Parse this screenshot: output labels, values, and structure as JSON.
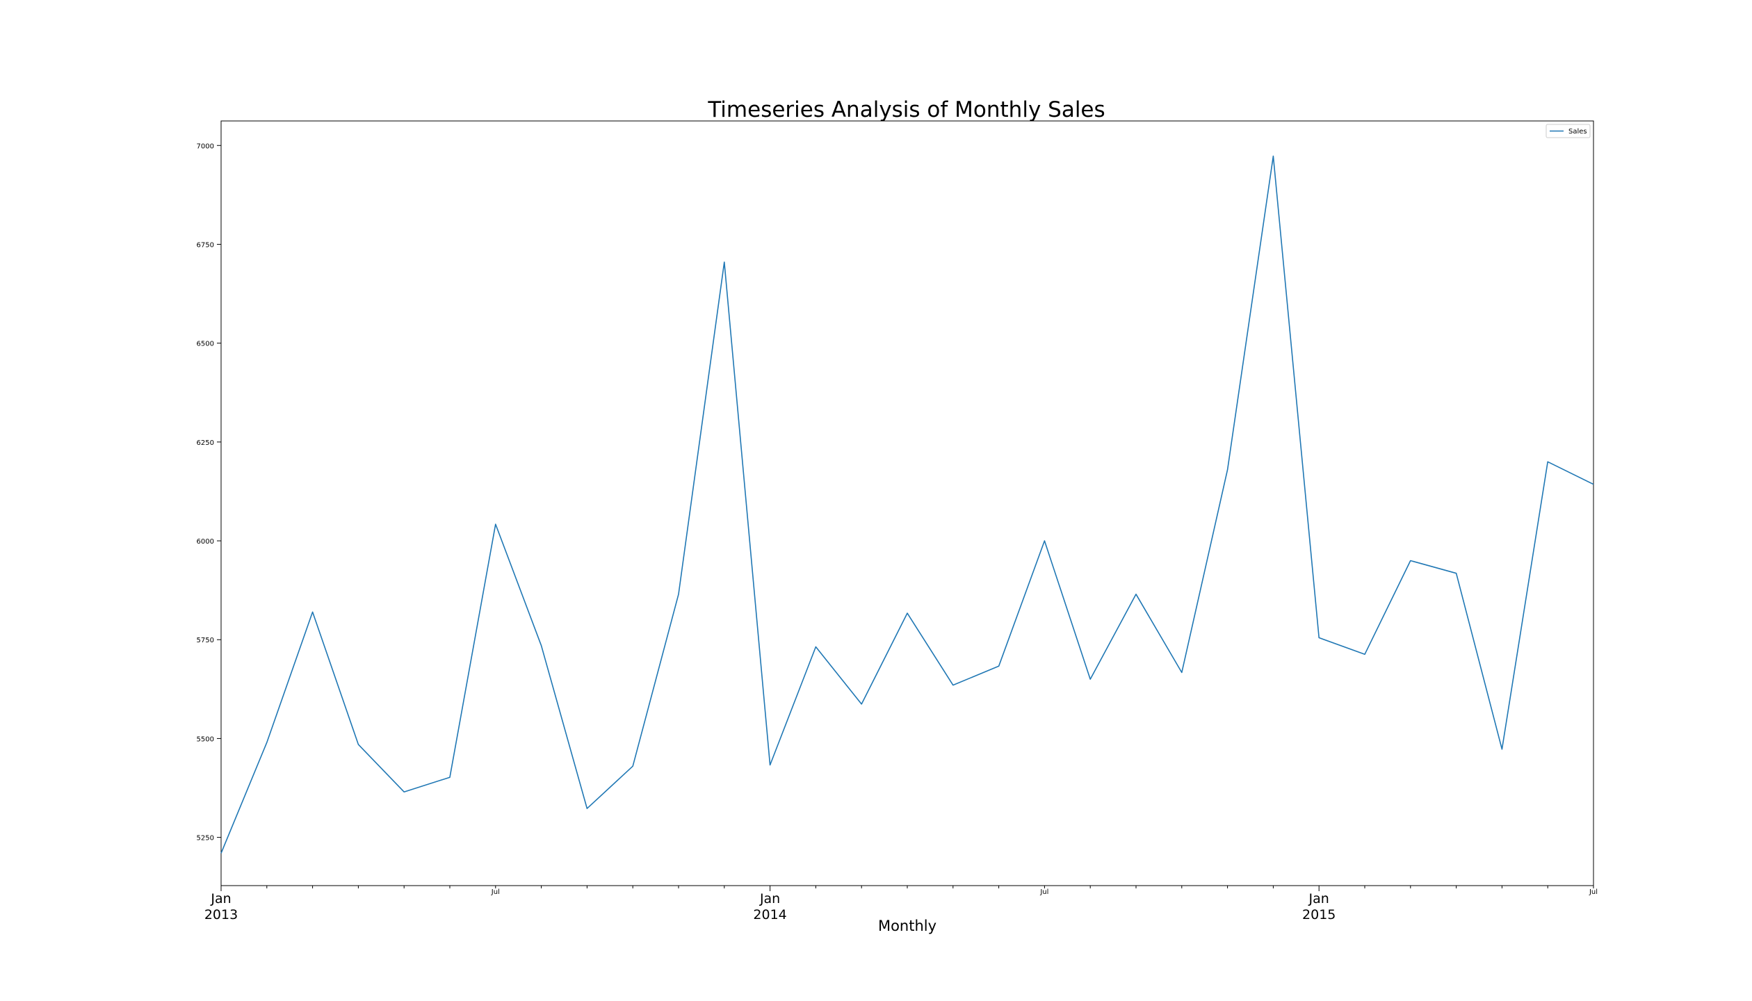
{
  "chart_data": {
    "type": "line",
    "title": "Timeseries Analysis of Monthly Sales",
    "xlabel": "Monthly",
    "ylabel": "",
    "ylim": [
      5128,
      7062
    ],
    "xlim": [
      "2013-01",
      "2015-07"
    ],
    "grid": false,
    "legend_position": "top-right",
    "line_color": "#1f77b4",
    "x": [
      "2013-01",
      "2013-02",
      "2013-03",
      "2013-04",
      "2013-05",
      "2013-06",
      "2013-07",
      "2013-08",
      "2013-09",
      "2013-10",
      "2013-11",
      "2013-12",
      "2014-01",
      "2014-02",
      "2014-03",
      "2014-04",
      "2014-05",
      "2014-06",
      "2014-07",
      "2014-08",
      "2014-09",
      "2014-10",
      "2014-11",
      "2014-12",
      "2015-01",
      "2015-02",
      "2015-03",
      "2015-04",
      "2015-05",
      "2015-06",
      "2015-07"
    ],
    "series": [
      {
        "name": "Sales",
        "values": [
          5210,
          5490,
          5820,
          5485,
          5365,
          5402,
          6042,
          5735,
          5323,
          5430,
          5865,
          6705,
          5433,
          5732,
          5587,
          5817,
          5635,
          5683,
          6000,
          5650,
          5865,
          5667,
          6180,
          6973,
          5755,
          5713,
          5950,
          5918,
          5473,
          6200,
          6143
        ]
      }
    ],
    "y_ticks": [
      "5250",
      "5500",
      "5750",
      "6000",
      "6250",
      "6500",
      "6750",
      "7000"
    ],
    "x_ticks": [
      {
        "date": "2013-01",
        "line1": "Jan",
        "line2": "2013",
        "major": true
      },
      {
        "date": "2013-07",
        "line1": "Jul",
        "line2": "",
        "major": false
      },
      {
        "date": "2014-01",
        "line1": "Jan",
        "line2": "2014",
        "major": true
      },
      {
        "date": "2014-07",
        "line1": "Jul",
        "line2": "",
        "major": false
      },
      {
        "date": "2015-01",
        "line1": "Jan",
        "line2": "2015",
        "major": true
      },
      {
        "date": "2015-07",
        "line1": "Jul",
        "line2": "",
        "major": false
      }
    ]
  }
}
